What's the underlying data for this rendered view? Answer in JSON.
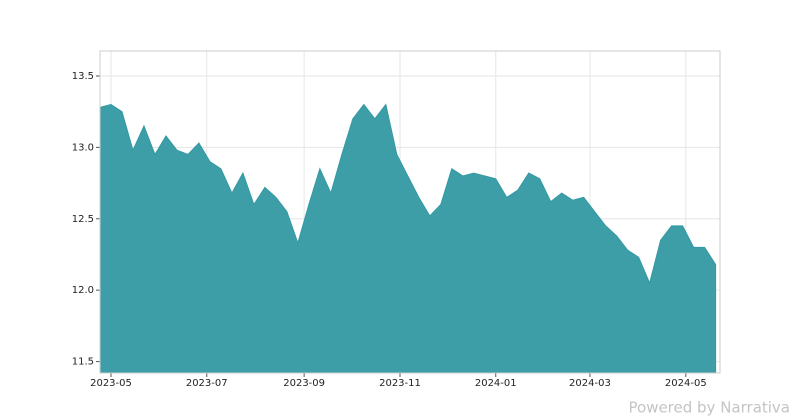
{
  "chart_data": {
    "type": "area",
    "values": [
      13.28,
      13.3,
      13.25,
      12.98,
      13.15,
      12.95,
      13.08,
      12.98,
      12.95,
      13.03,
      12.9,
      12.85,
      12.68,
      12.82,
      12.6,
      12.72,
      12.65,
      12.55,
      12.33,
      12.6,
      12.85,
      12.68,
      12.95,
      13.2,
      13.3,
      13.2,
      13.3,
      12.95,
      12.8,
      12.65,
      12.52,
      12.6,
      12.85,
      12.8,
      12.82,
      12.8,
      12.78,
      12.65,
      12.7,
      12.82,
      12.78,
      12.62,
      12.68,
      12.63,
      12.65,
      12.55,
      12.45,
      12.38,
      12.28,
      12.23,
      12.05,
      12.35,
      12.45,
      12.45,
      12.3,
      12.3,
      12.18
    ],
    "color": "#3399a3",
    "xlim": [
      0,
      56.4
    ],
    "xticks": [
      {
        "value": 1,
        "label": "2023-05"
      },
      {
        "value": 9.71,
        "label": "2023-07"
      },
      {
        "value": 18.57,
        "label": "2023-09"
      },
      {
        "value": 27.29,
        "label": "2023-11"
      },
      {
        "value": 36,
        "label": "2024-01"
      },
      {
        "value": 44.57,
        "label": "2024-03"
      },
      {
        "value": 53.29,
        "label": "2024-05"
      }
    ],
    "ylim": [
      11.42,
      13.675
    ],
    "yticks": [
      11.5,
      {
        "value": 12,
        "label": "12.0"
      },
      12.5,
      {
        "value": 13,
        "label": "13.0"
      },
      13.5
    ],
    "grid": true,
    "credit": "Powered by Narrativa"
  }
}
